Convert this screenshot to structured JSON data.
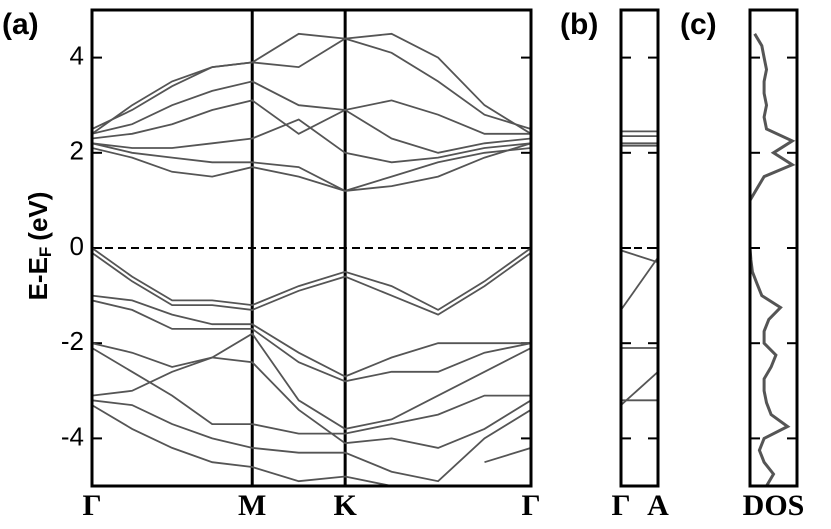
{
  "chart_data": [
    {
      "type": "line",
      "panel_label": "(a)",
      "ylabel": {
        "text": "E-E",
        "subscript": "F",
        "unit": "(eV)"
      },
      "xlim": [
        0,
        2.74
      ],
      "ylim": [
        -5,
        5
      ],
      "yticks": [
        -4,
        -2,
        0,
        2,
        4
      ],
      "xticks": [
        {
          "value": 0,
          "label": "Γ"
        },
        {
          "value": 1,
          "label": "M"
        },
        {
          "value": 1.58,
          "label": "K"
        },
        {
          "value": 2.74,
          "label": "Γ"
        }
      ],
      "reference_line": 0,
      "x": [
        0,
        0.25,
        0.5,
        0.75,
        1,
        1.29,
        1.58,
        1.87,
        2.16,
        2.45,
        2.74
      ],
      "series": [
        {
          "color": "#555555",
          "values": [
            2.1,
            1.9,
            1.6,
            1.5,
            1.7,
            1.5,
            1.2,
            1.5,
            1.8,
            2.0,
            2.1
          ]
        },
        {
          "color": "#555555",
          "values": [
            2.2,
            2.0,
            1.9,
            1.8,
            1.8,
            1.7,
            1.2,
            1.3,
            1.5,
            1.9,
            2.2
          ]
        },
        {
          "color": "#555555",
          "values": [
            2.2,
            2.1,
            2.1,
            2.2,
            2.3,
            2.7,
            2.0,
            1.8,
            1.9,
            2.1,
            2.2
          ]
        },
        {
          "color": "#555555",
          "values": [
            2.3,
            2.4,
            2.6,
            2.9,
            3.1,
            2.4,
            2.9,
            2.3,
            2.0,
            2.2,
            2.3
          ]
        },
        {
          "color": "#555555",
          "values": [
            2.4,
            2.6,
            3.0,
            3.3,
            3.5,
            3.0,
            2.9,
            3.1,
            2.8,
            2.4,
            2.4
          ]
        },
        {
          "color": "#555555",
          "values": [
            2.5,
            2.9,
            3.4,
            3.8,
            3.9,
            3.8,
            4.4,
            4.1,
            3.5,
            2.8,
            2.5
          ]
        },
        {
          "color": "#555555",
          "values": [
            2.4,
            3.0,
            3.5,
            3.8,
            3.9,
            4.5,
            4.4,
            4.5,
            4.0,
            3.0,
            2.4
          ]
        },
        {
          "color": "#555555",
          "values": [
            0,
            -0.6,
            -1.1,
            -1.1,
            -1.2,
            -0.8,
            -0.5,
            -0.8,
            -1.3,
            -0.7,
            0
          ]
        },
        {
          "color": "#555555",
          "values": [
            -0.1,
            -0.7,
            -1.2,
            -1.2,
            -1.3,
            -0.9,
            -0.6,
            -1.0,
            -1.4,
            -0.8,
            -0.1
          ]
        },
        {
          "color": "#555555",
          "values": [
            -1.0,
            -1.1,
            -1.4,
            -1.6,
            -1.6,
            -2.2,
            -2.7,
            -2.3,
            -2.0,
            -2.0,
            -2.0
          ]
        },
        {
          "color": "#555555",
          "values": [
            -1.1,
            -1.3,
            -1.7,
            -1.7,
            -1.7,
            -2.4,
            -2.8,
            -2.6,
            -2.6,
            -2.2,
            -2.0
          ]
        },
        {
          "color": "#555555",
          "values": [
            -2.0,
            -2.2,
            -2.5,
            -2.3,
            -1.8,
            -3.2,
            -3.8,
            -3.6,
            -3.1,
            -2.6,
            -2.1
          ]
        },
        {
          "color": "#555555",
          "values": [
            -2.1,
            -2.6,
            -3.1,
            -3.7,
            -3.7,
            -3.9,
            -3.9,
            -3.7,
            -3.5,
            -3.1,
            -3.1
          ]
        },
        {
          "color": "#555555",
          "values": [
            -3.1,
            -3.0,
            -2.6,
            -2.3,
            -2.4,
            -3.4,
            -4.1,
            -4.0,
            -4.2,
            -3.8,
            -3.2
          ]
        },
        {
          "color": "#555555",
          "values": [
            -3.2,
            -3.3,
            -3.7,
            -4.0,
            -4.2,
            -4.3,
            -4.3,
            -4.7,
            -4.9,
            -4.0,
            -3.4
          ]
        },
        {
          "color": "#555555",
          "values": [
            -3.3,
            -3.8,
            -4.2,
            -4.5,
            -4.6,
            -4.9,
            -4.8,
            -5.0,
            null,
            -4.5,
            -4.2
          ]
        }
      ]
    },
    {
      "type": "line",
      "panel_label": "(b)",
      "xlim": [
        0,
        1
      ],
      "ylim": [
        -5,
        5
      ],
      "yticks": [
        -4,
        -2,
        0,
        2,
        4
      ],
      "ytick_labels": false,
      "xticks": [
        {
          "value": 0,
          "label": "Γ"
        },
        {
          "value": 1,
          "label": "A"
        }
      ],
      "reference_line": 0,
      "x": [
        0,
        1
      ],
      "series": [
        {
          "color": "#555555",
          "values": [
            2.45,
            2.45
          ]
        },
        {
          "color": "#555555",
          "values": [
            2.35,
            2.35
          ]
        },
        {
          "color": "#555555",
          "values": [
            2.2,
            2.2
          ]
        },
        {
          "color": "#555555",
          "values": [
            2.15,
            2.15
          ]
        },
        {
          "color": "#555555",
          "values": [
            -0.05,
            -0.3
          ]
        },
        {
          "color": "#555555",
          "values": [
            -1.3,
            -0.2
          ]
        },
        {
          "color": "#555555",
          "values": [
            -2.1,
            -2.1
          ]
        },
        {
          "color": "#555555",
          "values": [
            -3.3,
            -2.6
          ]
        },
        {
          "color": "#555555",
          "values": [
            -3.2,
            -3.2
          ]
        }
      ]
    },
    {
      "type": "dos",
      "panel_label": "(c)",
      "xlabel": "DOS",
      "xlim": [
        0,
        1
      ],
      "ylim": [
        -5,
        5
      ],
      "yticks": [
        -4,
        -2,
        0,
        2,
        4
      ],
      "ytick_labels": false,
      "color": "#555555",
      "energies": [
        -5,
        -4.75,
        -4.5,
        -4.25,
        -4,
        -3.75,
        -3.5,
        -3.25,
        -3,
        -2.75,
        -2.5,
        -2.25,
        -2,
        -1.75,
        -1.5,
        -1.25,
        -1,
        -0.75,
        -0.5,
        -0.25,
        0,
        0.25,
        0.5,
        0.75,
        1,
        1.25,
        1.5,
        1.75,
        2,
        2.25,
        2.5,
        2.75,
        3,
        3.25,
        3.5,
        3.75,
        4,
        4.25,
        4.5
      ],
      "values": [
        0.35,
        0.5,
        0.3,
        0.2,
        0.3,
        0.8,
        0.45,
        0.35,
        0.3,
        0.3,
        0.45,
        0.55,
        0.3,
        0.3,
        0.4,
        0.65,
        0.25,
        0.15,
        0.05,
        0.02,
        0,
        0,
        0,
        0,
        0,
        0.15,
        0.3,
        0.9,
        0.5,
        0.9,
        0.35,
        0.3,
        0.35,
        0.3,
        0.3,
        0.35,
        0.3,
        0.25,
        0.1
      ]
    }
  ]
}
